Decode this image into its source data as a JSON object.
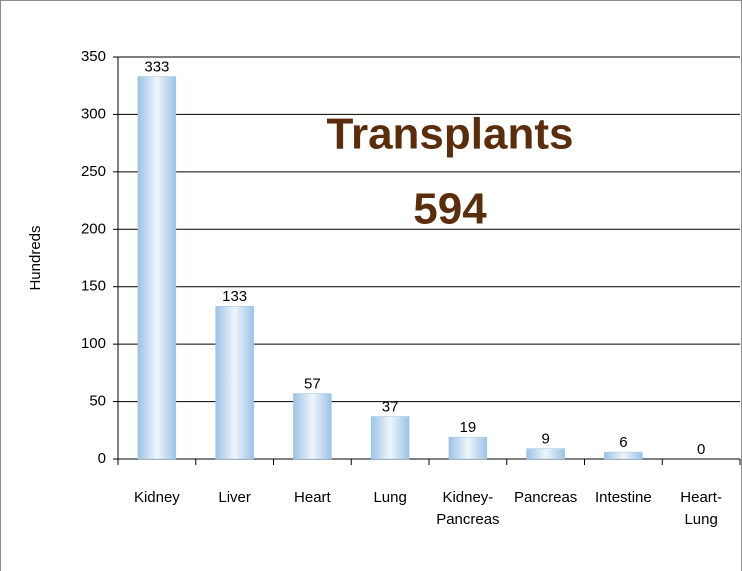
{
  "chart_data": {
    "type": "bar",
    "annotations": [
      "Transplants",
      "594"
    ],
    "y_label": "Hundreds",
    "categories": [
      "Kidney",
      "Liver",
      "Heart",
      "Lung",
      "Kidney-\nPancreas",
      "Pancreas",
      "Intestine",
      "Heart-\nLung"
    ],
    "values": [
      333,
      133,
      57,
      37,
      19,
      9,
      6,
      0
    ],
    "color": "#9cc3e5",
    "ylim": [
      0,
      350
    ],
    "yticks": [
      0,
      50,
      100,
      150,
      200,
      250,
      300,
      350
    ],
    "grid": true
  }
}
